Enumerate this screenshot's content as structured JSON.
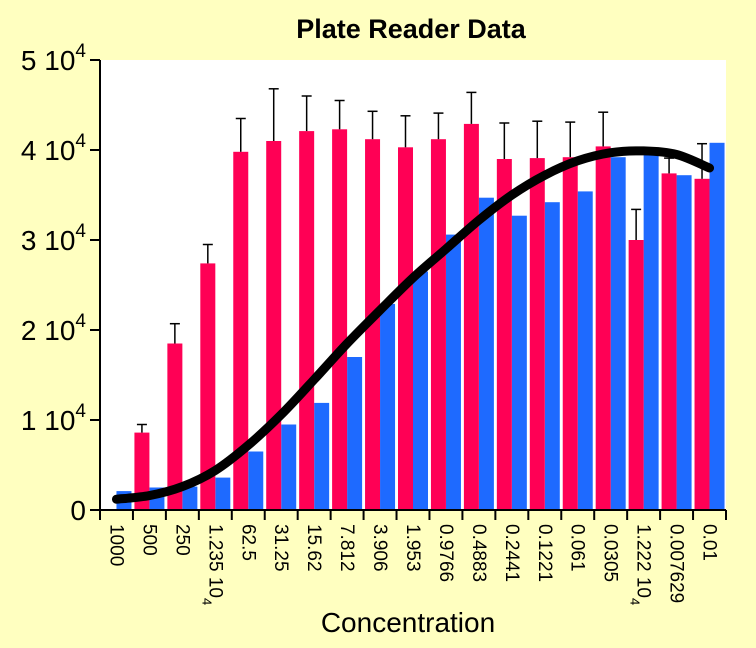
{
  "chart_data": {
    "type": "bar",
    "title": "Plate Reader Data",
    "xlabel": "Concentration",
    "ylabel": "",
    "ylim": [
      0,
      50000
    ],
    "yticks": [
      {
        "value": 0,
        "base": "0",
        "exp": ""
      },
      {
        "value": 10000,
        "base": "1 10",
        "exp": "4"
      },
      {
        "value": 20000,
        "base": "2 10",
        "exp": "4"
      },
      {
        "value": 30000,
        "base": "3 10",
        "exp": "4"
      },
      {
        "value": 40000,
        "base": "4 10",
        "exp": "4"
      },
      {
        "value": 50000,
        "base": "5 10",
        "exp": "4"
      }
    ],
    "categories": [
      {
        "base": "1000",
        "exp": ""
      },
      {
        "base": "500",
        "exp": ""
      },
      {
        "base": "250",
        "exp": ""
      },
      {
        "base": "1.235 10",
        "exp": "4"
      },
      {
        "base": "62.5",
        "exp": ""
      },
      {
        "base": "31.25",
        "exp": ""
      },
      {
        "base": "15.62",
        "exp": ""
      },
      {
        "base": "7.812",
        "exp": ""
      },
      {
        "base": "3.906",
        "exp": ""
      },
      {
        "base": "1.953",
        "exp": ""
      },
      {
        "base": "0.9766",
        "exp": ""
      },
      {
        "base": "0.4883",
        "exp": ""
      },
      {
        "base": "0.2441",
        "exp": ""
      },
      {
        "base": "0.1221",
        "exp": ""
      },
      {
        "base": "0.061",
        "exp": ""
      },
      {
        "base": "0.0305",
        "exp": ""
      },
      {
        "base": "1.222 10",
        "exp": "4"
      },
      {
        "base": "0.007629",
        "exp": ""
      },
      {
        "base": "0.01",
        "exp": ""
      }
    ],
    "series": [
      {
        "color": "#ff0055",
        "values": [
          2000,
          8600,
          18500,
          27400,
          39800,
          41000,
          42100,
          42300,
          41200,
          40300,
          41200,
          42900,
          39000,
          39100,
          39200,
          40400,
          30000,
          37400,
          36800
        ],
        "errors": [
          0,
          900,
          2200,
          2100,
          3700,
          5800,
          3900,
          3200,
          3100,
          3500,
          2900,
          3500,
          4000,
          4100,
          3900,
          3800,
          3400,
          1700,
          3900
        ]
      },
      {
        "color": "#1e6aff",
        "values": [
          2100,
          2500,
          2600,
          3600,
          6500,
          9500,
          11900,
          17000,
          22900,
          26500,
          30600,
          34700,
          32700,
          34200,
          35400,
          39200,
          39600,
          37200,
          40800
        ]
      }
    ],
    "fit_curve": {
      "color": "#000000",
      "values": [
        1200,
        1600,
        2600,
        4400,
        7200,
        10600,
        14500,
        18500,
        22200,
        25800,
        29000,
        32200,
        35000,
        37200,
        38800,
        39700,
        39900,
        39500,
        38000
      ]
    },
    "grid": false,
    "legend": "none"
  }
}
